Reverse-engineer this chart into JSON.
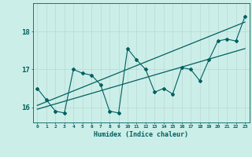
{
  "xlabel": "Humidex (Indice chaleur)",
  "ylabel": "",
  "background_color": "#cceee8",
  "grid_color": "#b8d8d4",
  "line_color": "#006060",
  "x_data": [
    0,
    1,
    2,
    3,
    4,
    5,
    6,
    7,
    8,
    9,
    10,
    11,
    12,
    13,
    14,
    15,
    16,
    17,
    18,
    19,
    20,
    21,
    22,
    23
  ],
  "y_data": [
    16.5,
    16.2,
    15.9,
    15.85,
    17.0,
    16.9,
    16.85,
    16.6,
    15.9,
    15.85,
    17.55,
    17.25,
    17.0,
    16.4,
    16.5,
    16.35,
    17.05,
    17.0,
    16.7,
    17.25,
    17.75,
    17.8,
    17.75,
    18.4
  ],
  "trend1_x": [
    0,
    23
  ],
  "trend1_y": [
    15.95,
    17.55
  ],
  "trend2_x": [
    0,
    23
  ],
  "trend2_y": [
    16.05,
    18.25
  ],
  "ylim": [
    15.6,
    18.75
  ],
  "xlim": [
    -0.5,
    23.5
  ],
  "yticks": [
    16,
    17,
    18
  ],
  "xticks": [
    0,
    1,
    2,
    3,
    4,
    5,
    6,
    7,
    8,
    9,
    10,
    11,
    12,
    13,
    14,
    15,
    16,
    17,
    18,
    19,
    20,
    21,
    22,
    23
  ]
}
